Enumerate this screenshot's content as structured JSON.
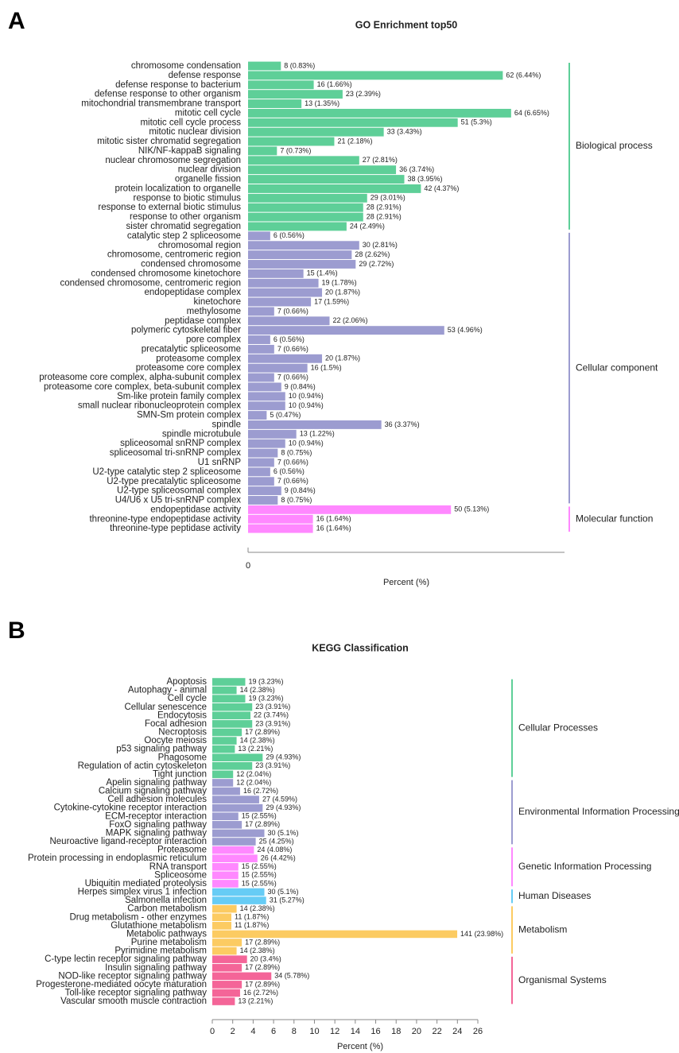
{
  "chart_data": [
    {
      "type": "bar",
      "orientation": "horizontal",
      "panel": "A",
      "title": "GO Enrichment top50",
      "xlabel": "Percent (%)",
      "xlim": [
        0,
        8
      ],
      "xticks": [
        0
      ],
      "series": [
        {
          "name": "Biological process",
          "color": "#5ecf98",
          "categories": [
            "chromosome condensation",
            "defense response",
            "defense response to bacterium",
            "defense response to other organism",
            "mitochondrial transmembrane transport",
            "mitotic cell cycle",
            "mitotic cell cycle process",
            "mitotic nuclear division",
            "mitotic sister chromatid segregation",
            "NIK/NF-kappaB signaling",
            "nuclear chromosome segregation",
            "nuclear division",
            "organelle fission",
            "protein localization to organelle",
            "response to biotic stimulus",
            "response to external biotic stimulus",
            "response to other organism",
            "sister chromatid segregation"
          ],
          "values": [
            0.83,
            6.44,
            1.66,
            2.39,
            1.35,
            6.65,
            5.3,
            3.43,
            2.18,
            0.73,
            2.81,
            3.74,
            3.95,
            4.37,
            3.01,
            2.91,
            2.91,
            2.49
          ],
          "value_labels": [
            "8 (0.83%)",
            "62 (6.44%)",
            "16 (1.66%)",
            "23 (2.39%)",
            "13 (1.35%)",
            "64 (6.65%)",
            "51 (5.3%)",
            "33 (3.43%)",
            "21 (2.18%)",
            "7 (0.73%)",
            "27 (2.81%)",
            "36 (3.74%)",
            "38 (3.95%)",
            "42 (4.37%)",
            "29 (3.01%)",
            "28 (2.91%)",
            "28 (2.91%)",
            "24 (2.49%)"
          ]
        },
        {
          "name": "Cellular component",
          "color": "#9c9cd0",
          "categories": [
            "catalytic step 2 spliceosome",
            "chromosomal region",
            "chromosome, centromeric region",
            "condensed chromosome",
            "condensed chromosome kinetochore",
            "condensed chromosome, centromeric region",
            "endopeptidase complex",
            "kinetochore",
            "methylosome",
            "peptidase complex",
            "polymeric cytoskeletal fiber",
            "pore complex",
            "precatalytic spliceosome",
            "proteasome complex",
            "proteasome core complex",
            "proteasome core complex, alpha-subunit complex",
            "proteasome core complex, beta-subunit complex",
            "Sm-like protein family complex",
            "small nuclear ribonucleoprotein complex",
            "SMN-Sm protein complex",
            "spindle",
            "spindle microtubule",
            "spliceosomal snRNP complex",
            "spliceosomal tri-snRNP complex",
            "U1 snRNP",
            "U2-type catalytic step 2 spliceosome",
            "U2-type precatalytic spliceosome",
            "U2-type spliceosomal complex",
            "U4/U6 x U5 tri-snRNP complex"
          ],
          "values": [
            0.56,
            2.81,
            2.62,
            2.72,
            1.4,
            1.78,
            1.87,
            1.59,
            0.66,
            2.06,
            4.96,
            0.56,
            0.66,
            1.87,
            1.5,
            0.66,
            0.84,
            0.94,
            0.94,
            0.47,
            3.37,
            1.22,
            0.94,
            0.75,
            0.66,
            0.56,
            0.66,
            0.84,
            0.75
          ],
          "value_labels": [
            "6 (0.56%)",
            "30 (2.81%)",
            "28 (2.62%)",
            "29 (2.72%)",
            "15 (1.4%)",
            "19 (1.78%)",
            "20 (1.87%)",
            "17 (1.59%)",
            "7 (0.66%)",
            "22 (2.06%)",
            "53 (4.96%)",
            "6 (0.56%)",
            "7 (0.66%)",
            "20 (1.87%)",
            "16 (1.5%)",
            "7 (0.66%)",
            "9 (0.84%)",
            "10 (0.94%)",
            "10 (0.94%)",
            "5 (0.47%)",
            "36 (3.37%)",
            "13 (1.22%)",
            "10 (0.94%)",
            "8 (0.75%)",
            "7 (0.66%)",
            "6 (0.56%)",
            "7 (0.66%)",
            "9 (0.84%)",
            "8 (0.75%)"
          ]
        },
        {
          "name": "Molecular function",
          "color": "#ff88ff",
          "categories": [
            "endopeptidase activity",
            "threonine-type endopeptidase activity",
            "threonine-type peptidase activity"
          ],
          "values": [
            5.13,
            1.64,
            1.64
          ],
          "value_labels": [
            "50 (5.13%)",
            "16 (1.64%)",
            "16 (1.64%)"
          ]
        }
      ]
    },
    {
      "type": "bar",
      "orientation": "horizontal",
      "panel": "B",
      "title": "KEGG Classification",
      "xlabel": "Percent (%)",
      "xlim": [
        0,
        26
      ],
      "xticks": [
        0,
        2,
        4,
        6,
        8,
        10,
        12,
        14,
        16,
        18,
        20,
        22,
        24,
        26
      ],
      "series": [
        {
          "name": "Cellular Processes",
          "color": "#5ecf98",
          "categories": [
            "Apoptosis",
            "Autophagy - animal",
            "Cell cycle",
            "Cellular senescence",
            "Endocytosis",
            "Focal adhesion",
            "Necroptosis",
            "Oocyte meiosis",
            "p53 signaling pathway",
            "Phagosome",
            "Regulation of actin cytoskeleton",
            "Tight junction"
          ],
          "values": [
            3.23,
            2.38,
            3.23,
            3.91,
            3.74,
            3.91,
            2.89,
            2.38,
            2.21,
            4.93,
            3.91,
            2.04
          ],
          "value_labels": [
            "19 (3.23%)",
            "14 (2.38%)",
            "19 (3.23%)",
            "23 (3.91%)",
            "22 (3.74%)",
            "23 (3.91%)",
            "17 (2.89%)",
            "14 (2.38%)",
            "13 (2.21%)",
            "29 (4.93%)",
            "23 (3.91%)",
            "12 (2.04%)"
          ]
        },
        {
          "name": "Environmental Information Processing",
          "color": "#9c9cd0",
          "categories": [
            "Apelin signaling pathway",
            "Calcium signaling pathway",
            "Cell adhesion molecules",
            "Cytokine-cytokine receptor interaction",
            "ECM-receptor interaction",
            "FoxO signaling pathway",
            "MAPK signaling pathway",
            "Neuroactive ligand-receptor interaction"
          ],
          "values": [
            2.04,
            2.72,
            4.59,
            4.93,
            2.55,
            2.89,
            5.1,
            4.25
          ],
          "value_labels": [
            "12 (2.04%)",
            "16 (2.72%)",
            "27 (4.59%)",
            "29 (4.93%)",
            "15 (2.55%)",
            "17 (2.89%)",
            "30 (5.1%)",
            "25 (4.25%)"
          ]
        },
        {
          "name": "Genetic Information Processing",
          "color": "#ff88ff",
          "categories": [
            "Proteasome",
            "Protein processing in endoplasmic reticulum",
            "RNA transport",
            "Spliceosome",
            "Ubiquitin mediated proteolysis"
          ],
          "values": [
            4.08,
            4.42,
            2.55,
            2.55,
            2.55
          ],
          "value_labels": [
            "24 (4.08%)",
            "26 (4.42%)",
            "15 (2.55%)",
            "15 (2.55%)",
            "15 (2.55%)"
          ]
        },
        {
          "name": "Human Diseases",
          "color": "#66ccf5",
          "categories": [
            "Herpes simplex virus 1 infection",
            "Salmonella infection"
          ],
          "values": [
            5.1,
            5.27
          ],
          "value_labels": [
            "30 (5.1%)",
            "31 (5.27%)"
          ]
        },
        {
          "name": "Metabolism",
          "color": "#fccb62",
          "categories": [
            "Carbon metabolism",
            "Drug metabolism - other enzymes",
            "Glutathione metabolism",
            "Metabolic pathways",
            "Purine metabolism",
            "Pyrimidine metabolism"
          ],
          "values": [
            2.38,
            1.87,
            1.87,
            23.98,
            2.89,
            2.38
          ],
          "value_labels": [
            "14 (2.38%)",
            "11 (1.87%)",
            "11 (1.87%)",
            "141 (23.98%)",
            "17 (2.89%)",
            "14 (2.38%)"
          ]
        },
        {
          "name": "Organismal Systems",
          "color": "#f46598",
          "categories": [
            "C-type lectin receptor signaling pathway",
            "Insulin signaling pathway",
            "NOD-like receptor signaling pathway",
            "Progesterone-mediated oocyte maturation",
            "Toll-like receptor signaling pathway",
            "Vascular smooth muscle contraction"
          ],
          "values": [
            3.4,
            2.89,
            5.78,
            2.89,
            2.72,
            2.21
          ],
          "value_labels": [
            "20 (3.4%)",
            "17 (2.89%)",
            "34 (5.78%)",
            "17 (2.89%)",
            "16 (2.72%)",
            "13 (2.21%)"
          ]
        }
      ]
    }
  ]
}
